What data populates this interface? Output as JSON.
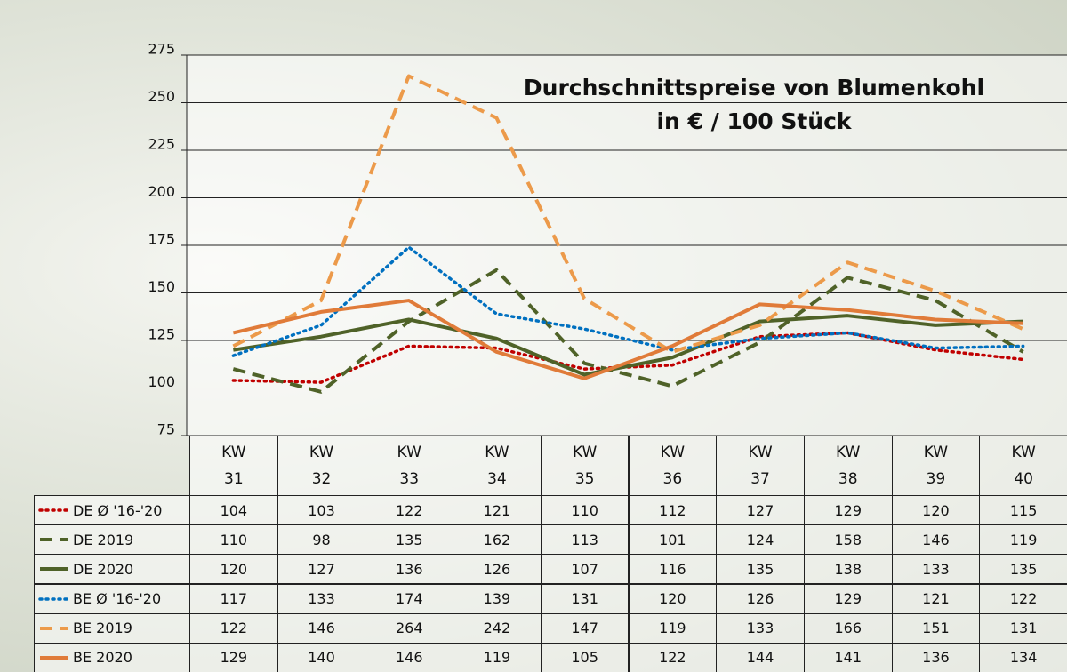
{
  "chart_data": {
    "type": "line",
    "title": "Durchschnittspreise von Blumenkohl",
    "subtitle": "in € / 100 Stück",
    "categories": [
      "KW 31",
      "KW 32",
      "KW 33",
      "KW 34",
      "KW 35",
      "KW 36",
      "KW 37",
      "KW 38",
      "KW 39",
      "KW 40"
    ],
    "series": [
      {
        "name": "DE Ø '16-'20",
        "color": "#c00000",
        "style": "dotted",
        "values": [
          104,
          103,
          122,
          121,
          110,
          112,
          127,
          129,
          120,
          115
        ]
      },
      {
        "name": "DE 2019",
        "color": "#4f6228",
        "style": "dashed",
        "values": [
          110,
          98,
          135,
          162,
          113,
          101,
          124,
          158,
          146,
          119
        ]
      },
      {
        "name": "DE 2020",
        "color": "#4f6228",
        "style": "solid",
        "values": [
          120,
          127,
          136,
          126,
          107,
          116,
          135,
          138,
          133,
          135
        ]
      },
      {
        "name": "BE Ø '16-'20",
        "color": "#0070c0",
        "style": "dotted",
        "values": [
          117,
          133,
          174,
          139,
          131,
          120,
          126,
          129,
          121,
          122
        ]
      },
      {
        "name": "BE 2019",
        "color": "#ec9a4a",
        "style": "dashed",
        "values": [
          122,
          146,
          264,
          242,
          147,
          119,
          133,
          166,
          151,
          131
        ]
      },
      {
        "name": "BE 2020",
        "color": "#e07b39",
        "style": "solid",
        "values": [
          129,
          140,
          146,
          119,
          105,
          122,
          144,
          141,
          136,
          134
        ]
      }
    ],
    "ylim": [
      75,
      275
    ],
    "yticks": [
      75,
      100,
      125,
      150,
      175,
      200,
      225,
      250,
      275
    ],
    "grid": true
  }
}
